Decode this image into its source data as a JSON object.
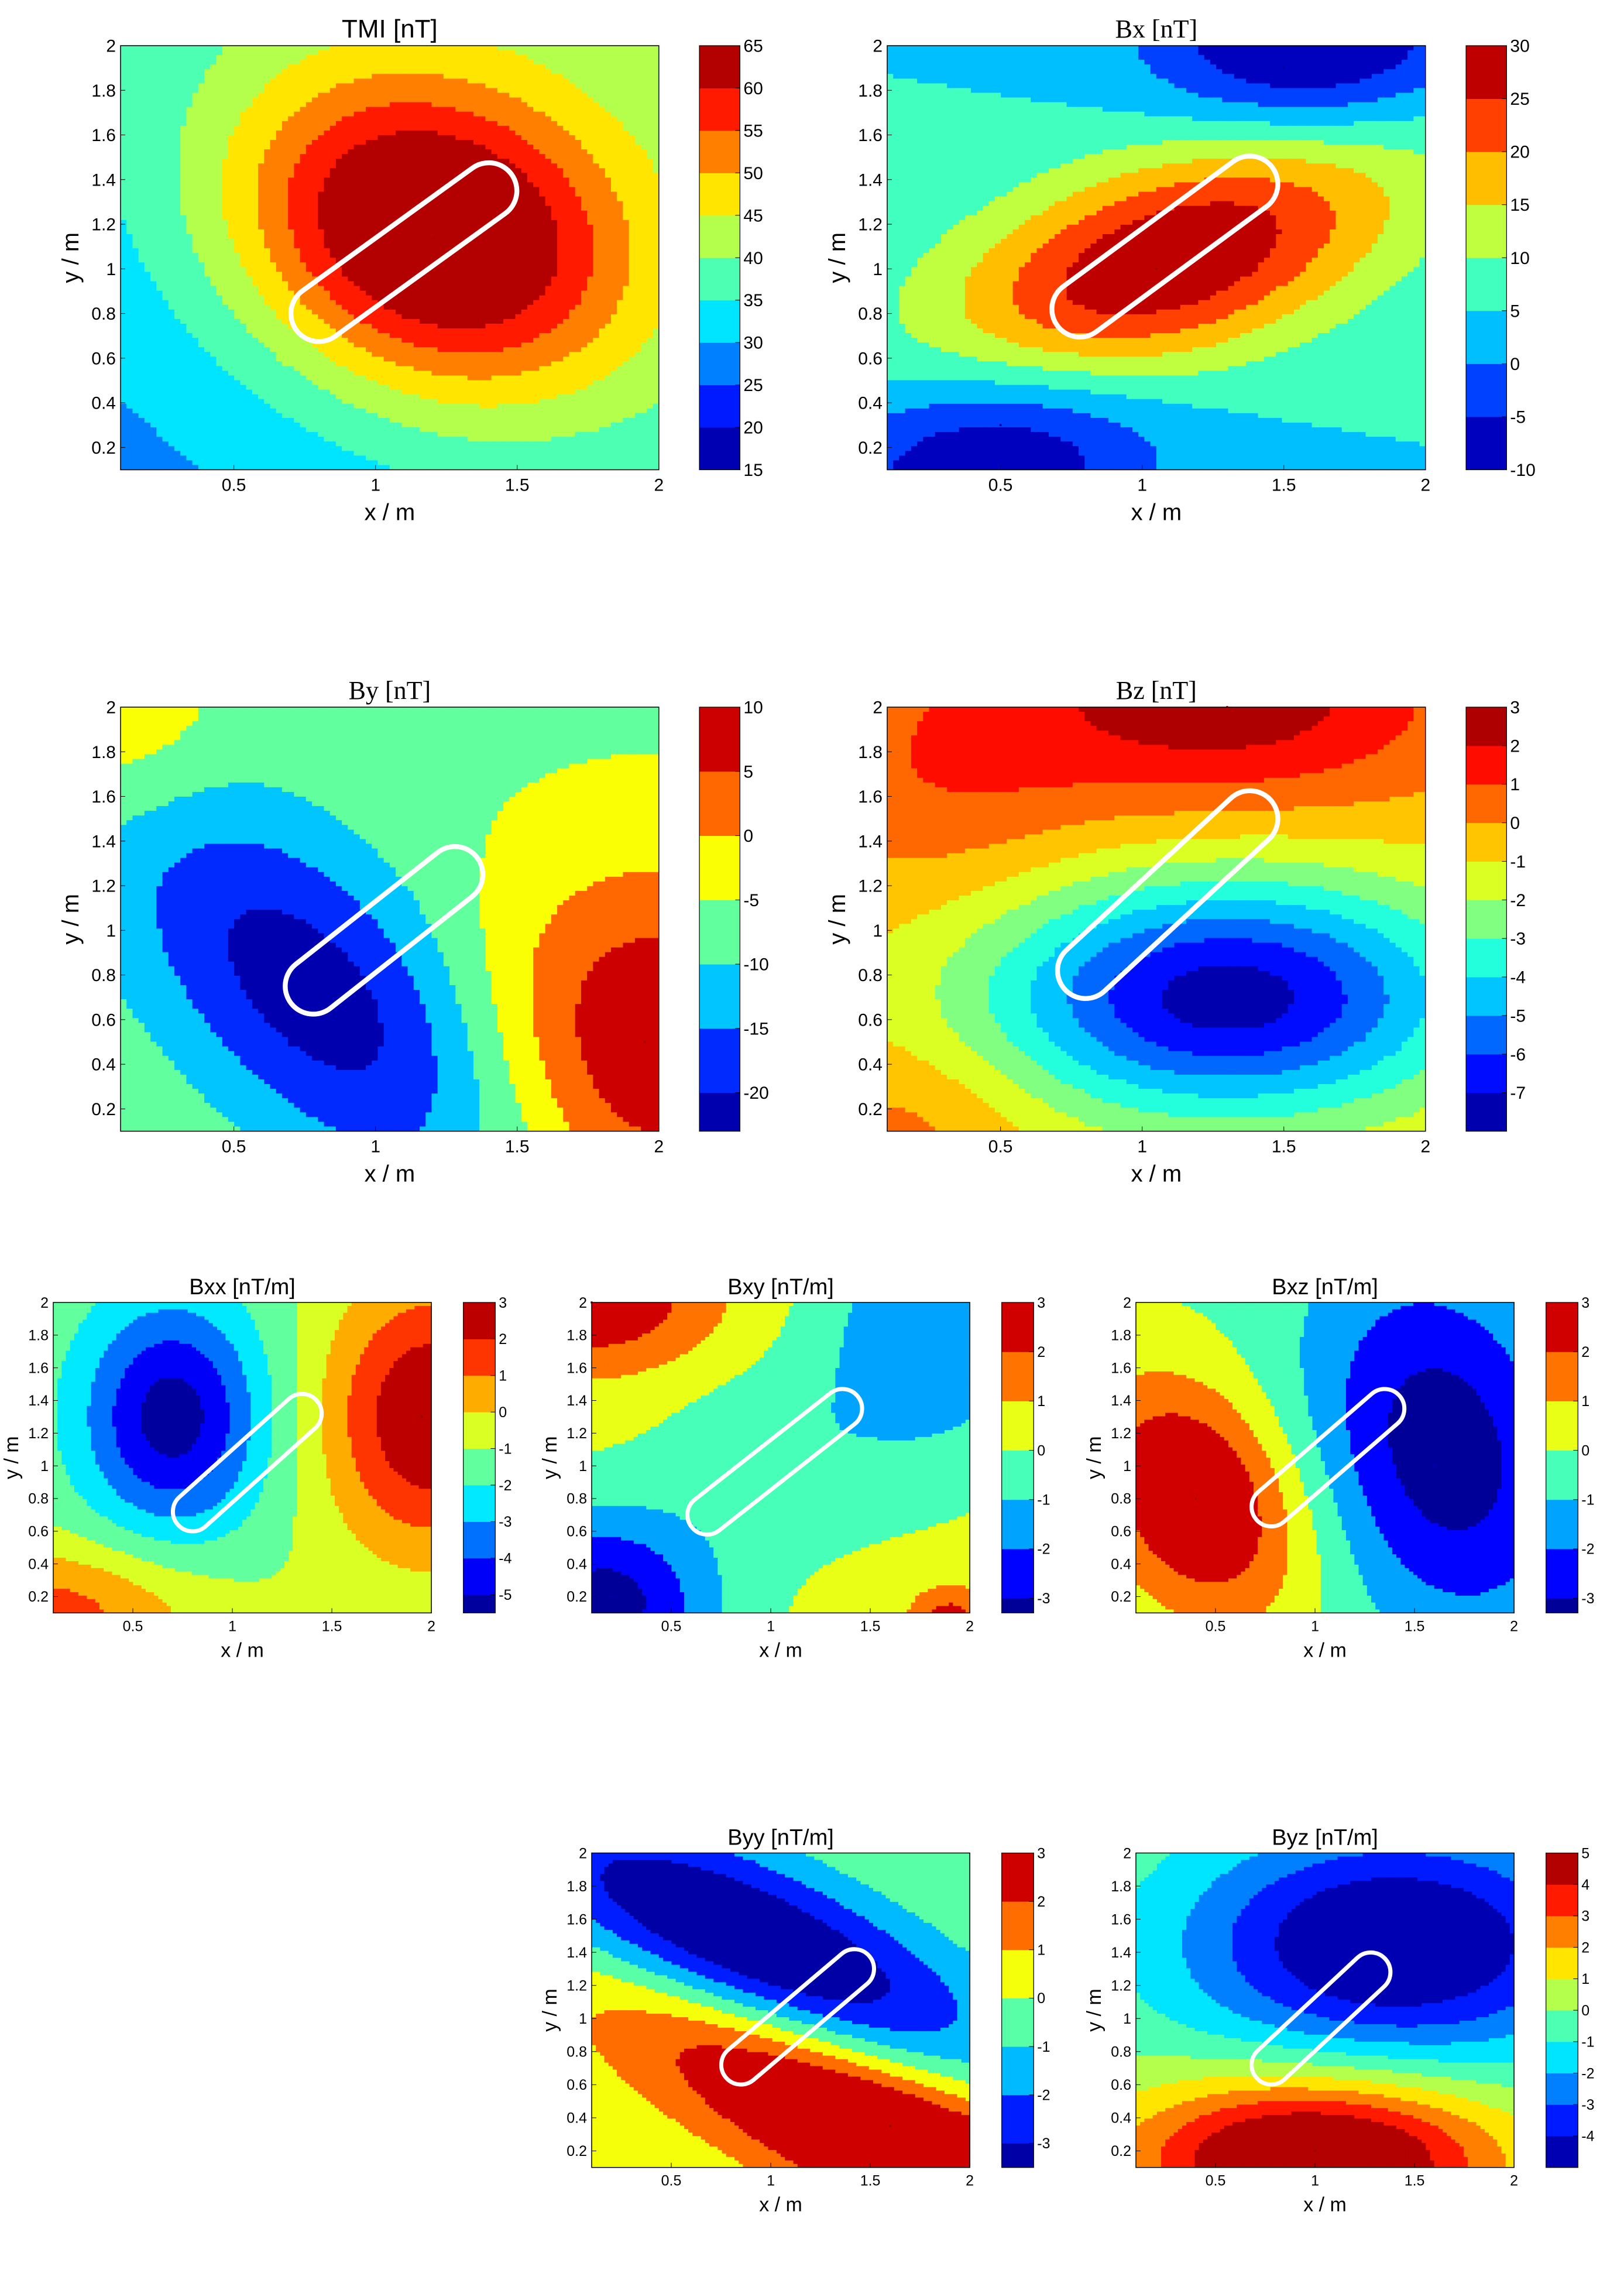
{
  "figure": {
    "background": "#ffffff",
    "outline_color": "#ffffff"
  },
  "chart_data": [
    {
      "id": "tmi",
      "type": "contour",
      "title": "TMI [nT]",
      "xlabel": "x / m",
      "ylabel": "y / m",
      "xlim": [
        0.1,
        2
      ],
      "ylim": [
        0.1,
        2
      ],
      "xticks": [
        "0.5",
        "1",
        "1.5",
        "2"
      ],
      "yticks": [
        "0.2",
        "0.4",
        "0.6",
        "0.8",
        "1",
        "1.2",
        "1.4",
        "1.6",
        "1.8",
        "2"
      ],
      "colorbar": {
        "min": 15,
        "max": 65,
        "ticks": [
          "15",
          "20",
          "25",
          "30",
          "35",
          "40",
          "45",
          "50",
          "55",
          "60",
          "65"
        ]
      },
      "levels": [
        15,
        20,
        25,
        30,
        35,
        40,
        45,
        50,
        55,
        60,
        65
      ],
      "outline": {
        "x1": 0.8,
        "y1": 0.8,
        "x2": 1.4,
        "y2": 1.35
      },
      "features": [
        {
          "kind": "max",
          "x": 1.2,
          "y": 1.15,
          "value": 62
        }
      ],
      "field": {
        "base": 28,
        "slope_x": 3,
        "slope_y": 3,
        "blobs": [
          {
            "x": 1.2,
            "y": 1.15,
            "a": 36,
            "sx": 0.45,
            "sy": 0.55,
            "rot": 40
          }
        ]
      }
    },
    {
      "id": "bx",
      "type": "contour",
      "title": "Bx [nT]",
      "xlabel": "x / m",
      "ylabel": "y / m",
      "xlim": [
        0.1,
        2
      ],
      "ylim": [
        0.1,
        2
      ],
      "xticks": [
        "0.5",
        "1",
        "1.5",
        "2"
      ],
      "yticks": [
        "0.2",
        "0.4",
        "0.6",
        "0.8",
        "1",
        "1.2",
        "1.4",
        "1.6",
        "1.8",
        "2"
      ],
      "colorbar": {
        "min": -10,
        "max": 30,
        "ticks": [
          "-10",
          "-5",
          "0",
          "5",
          "10",
          "15",
          "20",
          "25",
          "30"
        ]
      },
      "levels": [
        -10,
        -5,
        0,
        5,
        10,
        15,
        20,
        25,
        30
      ],
      "outline": {
        "x1": 0.78,
        "y1": 0.82,
        "x2": 1.38,
        "y2": 1.38
      },
      "features": [
        {
          "kind": "max",
          "x": 1.05,
          "y": 1.0,
          "value": 29
        },
        {
          "kind": "min",
          "x": 1.5,
          "y": 1.9,
          "value": -9
        },
        {
          "kind": "min",
          "x": 0.5,
          "y": 0.3,
          "value": -9
        }
      ],
      "field": {
        "base": 5,
        "slope_x": 0,
        "slope_y": 0,
        "blobs": [
          {
            "x": 1.05,
            "y": 1.0,
            "a": 26,
            "sx": 0.32,
            "sy": 0.7,
            "rot": -60
          },
          {
            "x": 1.6,
            "y": 2.0,
            "a": -18,
            "sx": 0.4,
            "sy": 0.3,
            "rot": 0
          },
          {
            "x": 0.45,
            "y": 0.2,
            "a": -18,
            "sx": 0.45,
            "sy": 0.35,
            "rot": 20
          }
        ]
      }
    },
    {
      "id": "by",
      "type": "contour",
      "title": "By [nT]",
      "xlabel": "x / m",
      "ylabel": "y / m",
      "xlim": [
        0.1,
        2
      ],
      "ylim": [
        0.1,
        2
      ],
      "xticks": [
        "0.5",
        "1",
        "1.5",
        "2"
      ],
      "yticks": [
        "0.2",
        "0.4",
        "0.6",
        "0.8",
        "1",
        "1.2",
        "1.4",
        "1.6",
        "1.8",
        "2"
      ],
      "colorbar": {
        "min": -23,
        "max": 10,
        "ticks": [
          "-20",
          "-15",
          "-10",
          "-5",
          "0",
          "5",
          "10"
        ]
      },
      "levels": [
        -23,
        -20,
        -15,
        -10,
        -5,
        0,
        5,
        10
      ],
      "outline": {
        "x1": 0.78,
        "y1": 0.75,
        "x2": 1.28,
        "y2": 1.25
      },
      "features": [
        {
          "kind": "min",
          "x": 0.8,
          "y": 0.7,
          "value": -22
        },
        {
          "kind": "max",
          "x": 1.95,
          "y": 0.5,
          "value": 9
        }
      ],
      "field": {
        "base": -6,
        "slope_x": 0,
        "slope_y": 0,
        "blobs": [
          {
            "x": 0.8,
            "y": 0.7,
            "a": -17,
            "sx": 0.35,
            "sy": 0.75,
            "rot": 35
          },
          {
            "x": 2.0,
            "y": 0.5,
            "a": 16,
            "sx": 0.45,
            "sy": 0.55,
            "rot": 0
          },
          {
            "x": 0.1,
            "y": 1.9,
            "a": 6,
            "sx": 0.25,
            "sy": 0.3,
            "rot": 0
          }
        ]
      }
    },
    {
      "id": "bz",
      "type": "contour",
      "title": "Bz [nT]",
      "xlabel": "x / m",
      "ylabel": "y / m",
      "xlim": [
        0.1,
        2
      ],
      "ylim": [
        0.1,
        2
      ],
      "xticks": [
        "0.5",
        "1",
        "1.5",
        "2"
      ],
      "yticks": [
        "0.2",
        "0.4",
        "0.6",
        "0.8",
        "1",
        "1.2",
        "1.4",
        "1.6",
        "1.8",
        "2"
      ],
      "colorbar": {
        "min": -8,
        "max": 3,
        "ticks": [
          "-7",
          "-6",
          "-5",
          "-4",
          "-3",
          "-2",
          "-1",
          "0",
          "1",
          "2",
          "3"
        ]
      },
      "levels": [
        -8,
        -7,
        -6,
        -5,
        -4,
        -3,
        -2,
        -1,
        0,
        1,
        2,
        3
      ],
      "outline": {
        "x1": 0.8,
        "y1": 0.82,
        "x2": 1.38,
        "y2": 1.5
      },
      "features": [
        {
          "kind": "min",
          "x": 1.3,
          "y": 0.7,
          "value": -7.5
        },
        {
          "kind": "max",
          "x": 1.3,
          "y": 2.0,
          "value": 2.5
        }
      ],
      "field": {
        "base": -0.5,
        "slope_x": 0,
        "slope_y": 0,
        "blobs": [
          {
            "x": 1.3,
            "y": 0.7,
            "a": -7,
            "sx": 0.6,
            "sy": 0.38,
            "rot": 0
          },
          {
            "x": 1.3,
            "y": 2.05,
            "a": 3.2,
            "sx": 0.55,
            "sy": 0.35,
            "rot": 0
          },
          {
            "x": 0.3,
            "y": 1.7,
            "a": 1.3,
            "sx": 0.4,
            "sy": 0.4,
            "rot": 0
          },
          {
            "x": 0.2,
            "y": 0.15,
            "a": 1.0,
            "sx": 0.3,
            "sy": 0.25,
            "rot": 0
          }
        ]
      }
    },
    {
      "id": "bxx",
      "type": "contour",
      "title": "Bxx [nT/m]",
      "xlabel": "x / m",
      "ylabel": "y / m",
      "xlim": [
        0.1,
        2
      ],
      "ylim": [
        0.1,
        2
      ],
      "xticks": [
        "0.5",
        "1",
        "1.5",
        "2"
      ],
      "yticks": [
        "0.2",
        "0.4",
        "0.6",
        "0.8",
        "1",
        "1.2",
        "1.4",
        "1.6",
        "1.8",
        "2"
      ],
      "colorbar": {
        "min": -5.5,
        "max": 3,
        "ticks": [
          "-5",
          "-4",
          "-3",
          "-2",
          "-1",
          "0",
          "1",
          "2",
          "3"
        ]
      },
      "levels": [
        -5.5,
        -5,
        -4,
        -3,
        -2,
        -1,
        0,
        1,
        2,
        3
      ],
      "outline": {
        "x1": 0.8,
        "y1": 0.72,
        "x2": 1.35,
        "y2": 1.32
      },
      "features": [
        {
          "kind": "min",
          "x": 0.7,
          "y": 1.3,
          "value": -5.3
        },
        {
          "kind": "max",
          "x": 1.95,
          "y": 1.3,
          "value": 2.9
        }
      ],
      "field": {
        "base": -1.2,
        "slope_x": 0,
        "slope_y": 0,
        "blobs": [
          {
            "x": 0.7,
            "y": 1.3,
            "a": -4.3,
            "sx": 0.32,
            "sy": 0.5,
            "rot": 0
          },
          {
            "x": 2.0,
            "y": 1.3,
            "a": 4.2,
            "sx": 0.38,
            "sy": 0.6,
            "rot": 0
          },
          {
            "x": 0.1,
            "y": 0.1,
            "a": 2.6,
            "sx": 0.55,
            "sy": 0.3,
            "rot": 0
          }
        ]
      }
    },
    {
      "id": "bxy",
      "type": "contour",
      "title": "Bxy [nT/m]",
      "xlabel": "x / m",
      "ylabel": "y / m",
      "xlim": [
        0.1,
        2
      ],
      "ylim": [
        0.1,
        2
      ],
      "xticks": [
        "0.5",
        "1",
        "1.5",
        "2"
      ],
      "yticks": [
        "0.2",
        "0.4",
        "0.6",
        "0.8",
        "1",
        "1.2",
        "1.4",
        "1.6",
        "1.8",
        "2"
      ],
      "colorbar": {
        "min": -3.3,
        "max": 3,
        "ticks": [
          "-3",
          "-2",
          "-1",
          "0",
          "1",
          "2",
          "3"
        ]
      },
      "levels": [
        -3.3,
        -3,
        -2,
        -1,
        0,
        1,
        2,
        3
      ],
      "outline": {
        "x1": 0.68,
        "y1": 0.7,
        "x2": 1.36,
        "y2": 1.35
      },
      "features": [
        {
          "kind": "max",
          "x": 0.1,
          "y": 2.0,
          "value": 2.5
        },
        {
          "kind": "min",
          "x": 0.2,
          "y": 0.2,
          "value": -3
        }
      ],
      "field": {
        "base": 0.3,
        "slope_x": 0,
        "slope_y": 0,
        "blobs": [
          {
            "x": 0.1,
            "y": 2.0,
            "a": 2.6,
            "sx": 0.45,
            "sy": 0.3,
            "rot": 0
          },
          {
            "x": 0.15,
            "y": 0.15,
            "a": -3.8,
            "sx": 0.4,
            "sy": 0.4,
            "rot": 0
          },
          {
            "x": 1.8,
            "y": 1.8,
            "a": -2.2,
            "sx": 0.4,
            "sy": 0.55,
            "rot": 0
          },
          {
            "x": 1.0,
            "y": 1.05,
            "a": -1.0,
            "sx": 0.4,
            "sy": 0.4,
            "rot": 0
          },
          {
            "x": 1.9,
            "y": 0.05,
            "a": 2.2,
            "sx": 0.15,
            "sy": 0.15,
            "rot": 0
          }
        ]
      }
    },
    {
      "id": "bxz",
      "type": "contour",
      "title": "Bxz [nT/m]",
      "xlabel": "x / m",
      "ylabel": "y / m",
      "xlim": [
        0.1,
        2
      ],
      "ylim": [
        0.1,
        2
      ],
      "xticks": [
        "0.5",
        "1",
        "1.5",
        "2"
      ],
      "yticks": [
        "0.2",
        "0.4",
        "0.6",
        "0.8",
        "1",
        "1.2",
        "1.4",
        "1.6",
        "1.8",
        "2"
      ],
      "colorbar": {
        "min": -3.3,
        "max": 3,
        "ticks": [
          "-3",
          "-2",
          "-1",
          "0",
          "1",
          "2",
          "3"
        ]
      },
      "levels": [
        -3.3,
        -3,
        -2,
        -1,
        0,
        1,
        2,
        3
      ],
      "outline": {
        "x1": 0.78,
        "y1": 0.75,
        "x2": 1.35,
        "y2": 1.35
      },
      "features": [
        {
          "kind": "max",
          "x": 0.4,
          "y": 0.8,
          "value": 2.8
        },
        {
          "kind": "min",
          "x": 1.6,
          "y": 1.0,
          "value": -3
        }
      ],
      "field": {
        "base": -0.2,
        "slope_x": 0,
        "slope_y": 0,
        "blobs": [
          {
            "x": 0.4,
            "y": 0.8,
            "a": 3.6,
            "sx": 0.35,
            "sy": 0.55,
            "rot": 20
          },
          {
            "x": 1.65,
            "y": 1.1,
            "a": -3.4,
            "sx": 0.45,
            "sy": 0.8,
            "rot": 10
          }
        ]
      }
    },
    {
      "id": "byy",
      "type": "contour",
      "title": "Byy [nT/m]",
      "xlabel": "x / m",
      "ylabel": "y / m",
      "xlim": [
        0.1,
        2
      ],
      "ylim": [
        0.1,
        2
      ],
      "xticks": [
        "0.5",
        "1",
        "1.5",
        "2"
      ],
      "yticks": [
        "0.2",
        "0.4",
        "0.6",
        "0.8",
        "1",
        "1.2",
        "1.4",
        "1.6",
        "1.8",
        "2"
      ],
      "colorbar": {
        "min": -3.5,
        "max": 3,
        "ticks": [
          "-3",
          "-2",
          "-1",
          "0",
          "1",
          "2",
          "3"
        ]
      },
      "levels": [
        -3.5,
        -3,
        -2,
        -1,
        0,
        1,
        2,
        3
      ],
      "outline": {
        "x1": 0.85,
        "y1": 0.72,
        "x2": 1.42,
        "y2": 1.3
      },
      "features": [
        {
          "kind": "min",
          "x": 0.9,
          "y": 1.45,
          "value": -3.3
        },
        {
          "kind": "max",
          "x": 1.6,
          "y": 0.35,
          "value": 2.9
        }
      ],
      "field": {
        "base": 0,
        "slope_x": 0,
        "slope_y": 0,
        "blobs": [
          {
            "x": 0.9,
            "y": 1.45,
            "a": -4.5,
            "sx": 0.35,
            "sy": 1.0,
            "rot": 60
          },
          {
            "x": 1.6,
            "y": 0.3,
            "a": 4.5,
            "sx": 0.32,
            "sy": 1.1,
            "rot": 60
          }
        ]
      }
    },
    {
      "id": "byz",
      "type": "contour",
      "title": "Byz [nT/m]",
      "xlabel": "x / m",
      "ylabel": "y / m",
      "xlim": [
        0.1,
        2
      ],
      "ylim": [
        0.1,
        2
      ],
      "xticks": [
        "0.5",
        "1",
        "1.5",
        "2"
      ],
      "yticks": [
        "0.2",
        "0.4",
        "0.6",
        "0.8",
        "1",
        "1.2",
        "1.4",
        "1.6",
        "1.8",
        "2"
      ],
      "colorbar": {
        "min": -5,
        "max": 5,
        "ticks": [
          "-4",
          "-3",
          "-2",
          "-1",
          "0",
          "1",
          "2",
          "3",
          "4",
          "5"
        ]
      },
      "levels": [
        -5,
        -4,
        -3,
        -2,
        -1,
        0,
        1,
        2,
        3,
        4,
        5
      ],
      "outline": {
        "x1": 0.78,
        "y1": 0.72,
        "x2": 1.28,
        "y2": 1.28
      },
      "features": [
        {
          "kind": "min",
          "x": 1.4,
          "y": 1.45,
          "value": -4.7
        },
        {
          "kind": "max",
          "x": 1.0,
          "y": 0.2,
          "value": 4.8
        }
      ],
      "field": {
        "base": 0,
        "slope_x": 0,
        "slope_y": 0,
        "blobs": [
          {
            "x": 1.4,
            "y": 1.45,
            "a": -5.5,
            "sx": 0.75,
            "sy": 0.5,
            "rot": 0
          },
          {
            "x": 1.0,
            "y": 0.15,
            "a": 6.3,
            "sx": 0.65,
            "sy": 0.35,
            "rot": 0
          }
        ]
      }
    }
  ]
}
